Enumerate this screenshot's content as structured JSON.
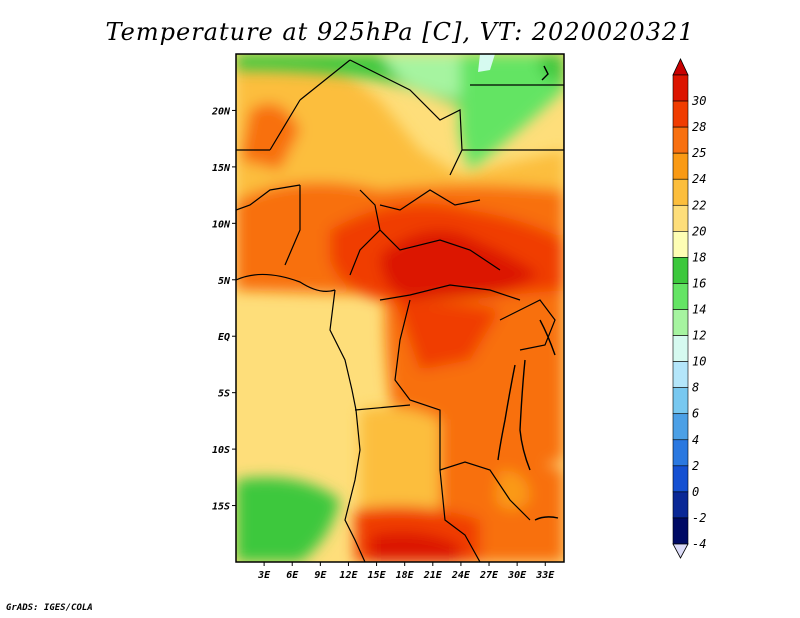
{
  "title": "Temperature at 925hPa [C], VT: 2020020321",
  "credit": "GrADS: IGES/COLA",
  "map": {
    "lon_range": [
      0,
      35
    ],
    "lat_range": [
      -20,
      25
    ],
    "lat_ticks": [
      {
        "value": 20,
        "label": "20N"
      },
      {
        "value": 15,
        "label": "15N"
      },
      {
        "value": 10,
        "label": "10N"
      },
      {
        "value": 5,
        "label": "5N"
      },
      {
        "value": 0,
        "label": "EQ"
      },
      {
        "value": -5,
        "label": "5S"
      },
      {
        "value": -10,
        "label": "10S"
      },
      {
        "value": -15,
        "label": "15S"
      }
    ],
    "lon_ticks": [
      {
        "value": 3,
        "label": "3E"
      },
      {
        "value": 6,
        "label": "6E"
      },
      {
        "value": 9,
        "label": "9E"
      },
      {
        "value": 12,
        "label": "12E"
      },
      {
        "value": 15,
        "label": "15E"
      },
      {
        "value": 18,
        "label": "18E"
      },
      {
        "value": 21,
        "label": "21E"
      },
      {
        "value": 24,
        "label": "24E"
      },
      {
        "value": 27,
        "label": "27E"
      },
      {
        "value": 30,
        "label": "30E"
      },
      {
        "value": 33,
        "label": "33E"
      }
    ]
  },
  "colorbar": {
    "levels": [
      {
        "label": "30",
        "color": "#dc1400"
      },
      {
        "label": "28",
        "color": "#f03c00"
      },
      {
        "label": "25",
        "color": "#f87010"
      },
      {
        "label": "24",
        "color": "#fa9a14"
      },
      {
        "label": "22",
        "color": "#fcbe3c"
      },
      {
        "label": "20",
        "color": "#fede7a"
      },
      {
        "label": "18",
        "color": "#fefeb4"
      },
      {
        "label": "16",
        "color": "#3cc83c"
      },
      {
        "label": "14",
        "color": "#64e464"
      },
      {
        "label": "12",
        "color": "#a6f4a0"
      },
      {
        "label": "10",
        "color": "#d6faf0"
      },
      {
        "label": "8",
        "color": "#b4e6fa"
      },
      {
        "label": "6",
        "color": "#78c8f0"
      },
      {
        "label": "4",
        "color": "#4ca0e6"
      },
      {
        "label": "2",
        "color": "#2a78e0"
      },
      {
        "label": "0",
        "color": "#1450d2"
      },
      {
        "label": "-2",
        "color": "#0a2896"
      },
      {
        "label": "-4",
        "color": "#000a64"
      }
    ],
    "top_color": "#c80000",
    "bottom_color": "#dcdcf8"
  }
}
